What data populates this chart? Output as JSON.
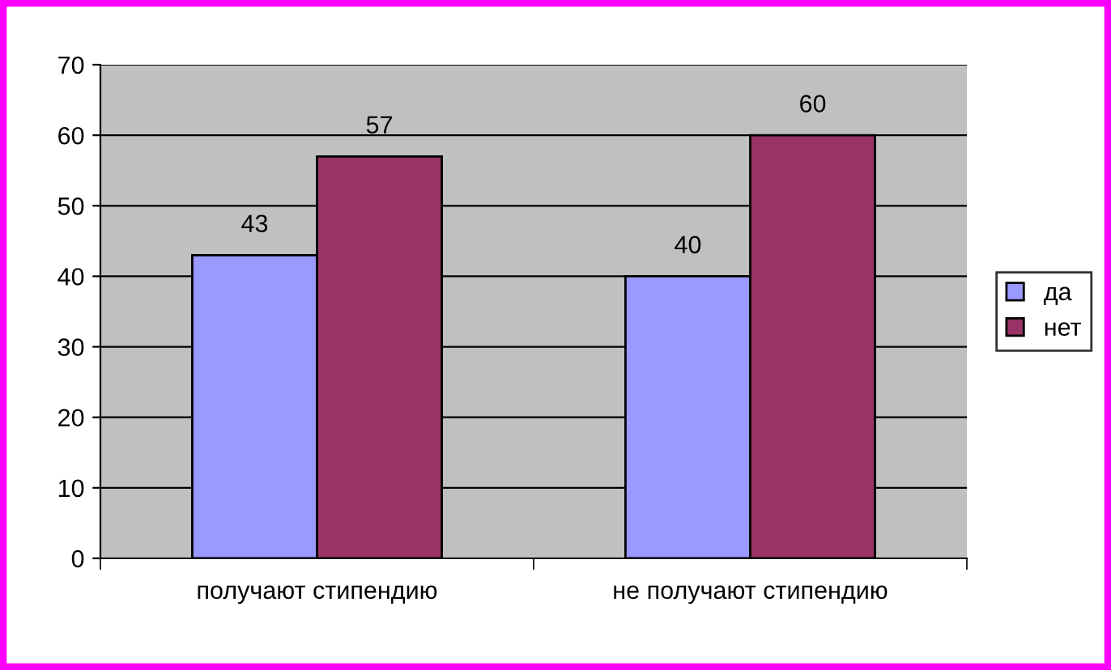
{
  "chart_data": {
    "type": "bar",
    "categories": [
      "получают стипендию",
      "не получают стипендию"
    ],
    "series": [
      {
        "name": "да",
        "color": "#9999ff",
        "values": [
          43,
          40
        ]
      },
      {
        "name": "нет",
        "color": "#993366",
        "values": [
          57,
          60
        ]
      }
    ],
    "ylim": [
      0,
      70
    ],
    "yticks": [
      0,
      10,
      20,
      30,
      40,
      50,
      60,
      70
    ],
    "grid": "y",
    "legend": "right",
    "data_labels": true
  }
}
